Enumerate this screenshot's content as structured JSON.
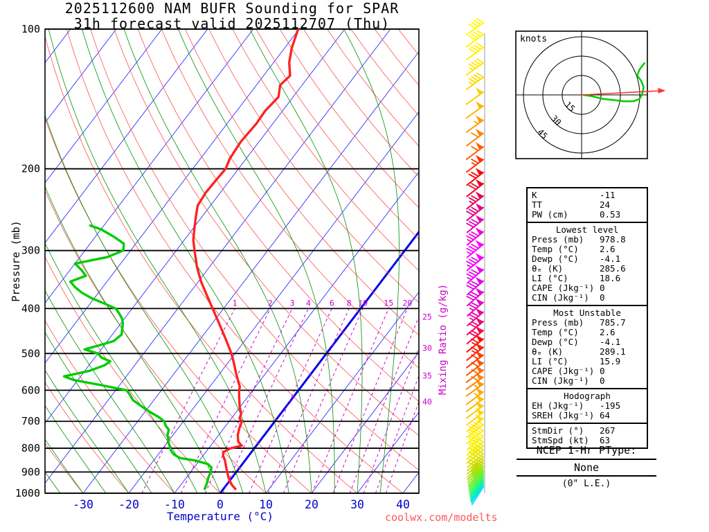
{
  "title": {
    "line1": "2025112600 NAM BUFR Sounding for SPAR",
    "line2": "31h forecast valid 2025112707 (Thu)"
  },
  "watermark": "coolwx.com/modelts",
  "axes": {
    "pressure_label": "Pressure (mb)",
    "temp_label": "Temperature (°C)",
    "mixing_label": "Mixing Ratio (g/kg)",
    "pressure_ticks": [
      100,
      200,
      300,
      400,
      500,
      600,
      700,
      800,
      900,
      1000
    ],
    "temp_ticks": [
      -30,
      -20,
      -10,
      0,
      10,
      20,
      30,
      40
    ]
  },
  "colors": {
    "isotherm": "#2e2eff",
    "zero_isotherm": "#0000ee",
    "dry_adiabat": "#ff5050",
    "moist_adiabat": "#009000",
    "mixing_ratio": "#cc00cc",
    "temperature": "#ff2222",
    "dewpoint": "#00cc00",
    "pressure_line": "#000000",
    "temp_axis_text": "#0000cc",
    "hodo_trace": "#00cc00",
    "storm_arrow": "#ff3333"
  },
  "hodograph": {
    "unit_label": "knots",
    "rings": [
      15,
      30,
      45
    ],
    "trace_uv_kt": [
      [
        1,
        0
      ],
      [
        8,
        -1
      ],
      [
        16,
        -3
      ],
      [
        25,
        -4
      ],
      [
        33,
        -5
      ],
      [
        40,
        -5
      ],
      [
        45,
        -3
      ],
      [
        47,
        1
      ],
      [
        48,
        6
      ],
      [
        46,
        11
      ],
      [
        43,
        15
      ],
      [
        45,
        20
      ],
      [
        49,
        25
      ]
    ],
    "storm_dir": 267,
    "storm_spd": 63
  },
  "indices": {
    "sections": [
      {
        "header": null,
        "rows": [
          [
            "K",
            "-11"
          ],
          [
            "TT",
            "24"
          ],
          [
            "PW (cm)",
            "0.53"
          ]
        ]
      },
      {
        "header": "Lowest level",
        "rows": [
          [
            "Press (mb)",
            "978.8"
          ],
          [
            "Temp (°C)",
            "2.6"
          ],
          [
            "Dewp (°C)",
            "-4.1"
          ],
          [
            "θₑ (K)",
            "285.6"
          ],
          [
            "LI (°C)",
            "18.6"
          ],
          [
            "CAPE (Jkg⁻¹)",
            "0"
          ],
          [
            "CIN (Jkg⁻¹)",
            "0"
          ]
        ]
      },
      {
        "header": "Most Unstable",
        "rows": [
          [
            "Press (mb)",
            "785.7"
          ],
          [
            "Temp (°C)",
            "2.6"
          ],
          [
            "Dewp (°C)",
            "-4.1"
          ],
          [
            "θₑ (K)",
            "289.1"
          ],
          [
            "LI (°C)",
            "15.9"
          ],
          [
            "CAPE (Jkg⁻¹)",
            "0"
          ],
          [
            "CIN (Jkg⁻¹)",
            "0"
          ]
        ]
      },
      {
        "header": "Hodograph",
        "rows": [
          [
            "EH (Jkg⁻¹)",
            "-195"
          ],
          [
            "SREH (Jkg⁻¹)",
            "64"
          ]
        ]
      },
      {
        "header": null,
        "rows": [
          [
            "StmDir (°)",
            "267"
          ],
          [
            "StmSpd (kt)",
            "63"
          ]
        ]
      }
    ]
  },
  "ptype": {
    "title": "NCEP 1-Hr PType:",
    "value": "None",
    "note": "(0\" L.E.)"
  },
  "chart_data": {
    "type": "skewt-log-p sounding",
    "pressure_axis": {
      "min": 100,
      "max": 1000,
      "scale": "log",
      "ticks": [
        100,
        200,
        300,
        400,
        500,
        600,
        700,
        800,
        900,
        1000
      ]
    },
    "temp_axis": {
      "ticks": [
        -30,
        -20,
        -10,
        0,
        10,
        20,
        30,
        40
      ],
      "unit": "°C"
    },
    "isotherms": {
      "start": -120,
      "end": 40,
      "step": 10,
      "highlight": 0
    },
    "dry_adiabats": {
      "start": -40,
      "end": 190,
      "step": 10
    },
    "moist_adiabats": {
      "start": -55,
      "end": 35,
      "step": 5
    },
    "mixing_ratios": [
      1,
      2,
      3,
      4,
      6,
      8,
      10,
      15,
      20,
      25,
      30,
      35,
      40
    ],
    "temperature_profile_p_c": [
      [
        978.8,
        2.6
      ],
      [
        960,
        1.2
      ],
      [
        950,
        0.6
      ],
      [
        925,
        -0.8
      ],
      [
        900,
        -2.0
      ],
      [
        875,
        -3.2
      ],
      [
        850,
        -4.4
      ],
      [
        830,
        -5.6
      ],
      [
        815,
        -6.2
      ],
      [
        800,
        -5.2
      ],
      [
        790,
        -3.2
      ],
      [
        775,
        -4.6
      ],
      [
        750,
        -5.8
      ],
      [
        725,
        -6.6
      ],
      [
        700,
        -7.2
      ],
      [
        690,
        -8.2
      ],
      [
        675,
        -8.6
      ],
      [
        650,
        -10.2
      ],
      [
        625,
        -11.6
      ],
      [
        600,
        -13.0
      ],
      [
        590,
        -13.4
      ],
      [
        575,
        -14.6
      ],
      [
        550,
        -16.6
      ],
      [
        525,
        -18.6
      ],
      [
        500,
        -20.8
      ],
      [
        475,
        -23.4
      ],
      [
        450,
        -26.2
      ],
      [
        425,
        -29.2
      ],
      [
        400,
        -32.4
      ],
      [
        375,
        -35.8
      ],
      [
        350,
        -39.4
      ],
      [
        325,
        -42.8
      ],
      [
        300,
        -46.0
      ],
      [
        285,
        -48.0
      ],
      [
        270,
        -49.6
      ],
      [
        255,
        -51.2
      ],
      [
        240,
        -52.8
      ],
      [
        225,
        -53.2
      ],
      [
        210,
        -53.0
      ],
      [
        200,
        -52.8
      ],
      [
        190,
        -53.6
      ],
      [
        175,
        -54.0
      ],
      [
        160,
        -53.6
      ],
      [
        150,
        -53.8
      ],
      [
        140,
        -53.2
      ],
      [
        132,
        -54.8
      ],
      [
        126,
        -54.2
      ],
      [
        118,
        -56.6
      ],
      [
        110,
        -58.4
      ],
      [
        100,
        -60.2
      ]
    ],
    "dewpoint_profile_p_c": [
      [
        978.8,
        -4.1
      ],
      [
        960,
        -4.4
      ],
      [
        950,
        -4.6
      ],
      [
        925,
        -5.2
      ],
      [
        900,
        -5.6
      ],
      [
        880,
        -6.2
      ],
      [
        865,
        -7.6
      ],
      [
        850,
        -11.0
      ],
      [
        840,
        -14.6
      ],
      [
        825,
        -16.6
      ],
      [
        810,
        -17.8
      ],
      [
        800,
        -18.4
      ],
      [
        780,
        -19.6
      ],
      [
        760,
        -20.6
      ],
      [
        750,
        -21.2
      ],
      [
        730,
        -21.8
      ],
      [
        715,
        -23.2
      ],
      [
        700,
        -24.2
      ],
      [
        685,
        -26.2
      ],
      [
        670,
        -28.6
      ],
      [
        650,
        -31.6
      ],
      [
        630,
        -34.6
      ],
      [
        615,
        -36.0
      ],
      [
        600,
        -37.6
      ],
      [
        585,
        -44.0
      ],
      [
        570,
        -51.0
      ],
      [
        560,
        -53.6
      ],
      [
        545,
        -49.0
      ],
      [
        530,
        -46.6
      ],
      [
        520,
        -46.0
      ],
      [
        510,
        -48.6
      ],
      [
        500,
        -50.0
      ],
      [
        490,
        -53.6
      ],
      [
        480,
        -51.0
      ],
      [
        470,
        -48.6
      ],
      [
        455,
        -48.0
      ],
      [
        445,
        -48.6
      ],
      [
        430,
        -49.6
      ],
      [
        420,
        -50.6
      ],
      [
        410,
        -52.0
      ],
      [
        400,
        -53.6
      ],
      [
        390,
        -57.0
      ],
      [
        380,
        -60.6
      ],
      [
        370,
        -63.6
      ],
      [
        360,
        -66.0
      ],
      [
        350,
        -68.0
      ],
      [
        340,
        -65.6
      ],
      [
        330,
        -67.6
      ],
      [
        320,
        -70.0
      ],
      [
        310,
        -64.0
      ],
      [
        300,
        -61.6
      ],
      [
        290,
        -62.6
      ],
      [
        280,
        -66.0
      ],
      [
        270,
        -70.0
      ],
      [
        265,
        -73.0
      ]
    ],
    "winds_fields": [
      "pressure_mb",
      "speed_kt",
      "direction_deg",
      "color"
    ],
    "winds": [
      [
        1000,
        10,
        252,
        "#00e0ff"
      ],
      [
        992,
        12,
        254,
        "#00e6e4"
      ],
      [
        984,
        15,
        255,
        "#00ecc8"
      ],
      [
        976,
        18,
        256,
        "#0cf0ae"
      ],
      [
        968,
        20,
        257,
        "#1cf394"
      ],
      [
        960,
        22,
        258,
        "#2cf57c"
      ],
      [
        952,
        25,
        259,
        "#3ef664"
      ],
      [
        944,
        27,
        260,
        "#50f550"
      ],
      [
        936,
        30,
        261,
        "#62f23e"
      ],
      [
        928,
        32,
        262,
        "#74ee2e"
      ],
      [
        920,
        34,
        263,
        "#86ea20"
      ],
      [
        910,
        35,
        264,
        "#98e614"
      ],
      [
        900,
        36,
        265,
        "#aae20a"
      ],
      [
        888,
        38,
        265,
        "#bade02"
      ],
      [
        876,
        40,
        266,
        "#c8da00"
      ],
      [
        862,
        41,
        266,
        "#d4dc00"
      ],
      [
        848,
        42,
        266,
        "#dee000"
      ],
      [
        832,
        44,
        267,
        "#e8e600"
      ],
      [
        815,
        45,
        267,
        "#f0ec00"
      ],
      [
        800,
        46,
        267,
        "#f6f000"
      ],
      [
        778,
        47,
        267,
        "#fbf200"
      ],
      [
        756,
        48,
        268,
        "#fff200"
      ],
      [
        734,
        49,
        268,
        "#ffea00"
      ],
      [
        712,
        50,
        268,
        "#ffe000"
      ],
      [
        690,
        51,
        268,
        "#ffd600"
      ],
      [
        668,
        52,
        269,
        "#ffc800"
      ],
      [
        646,
        54,
        269,
        "#ffba00"
      ],
      [
        624,
        55,
        269,
        "#ffaa00"
      ],
      [
        600,
        58,
        270,
        "#ff9800"
      ],
      [
        580,
        60,
        270,
        "#ff8200"
      ],
      [
        560,
        62,
        270,
        "#ff6c00"
      ],
      [
        540,
        63,
        269,
        "#ff5400"
      ],
      [
        520,
        64,
        269,
        "#ff3c00"
      ],
      [
        500,
        66,
        268,
        "#ff2200"
      ],
      [
        480,
        68,
        268,
        "#fe0a06"
      ],
      [
        460,
        70,
        267,
        "#f80040"
      ],
      [
        440,
        73,
        267,
        "#f20070"
      ],
      [
        420,
        76,
        266,
        "#ec00a0"
      ],
      [
        400,
        78,
        266,
        "#e800c0"
      ],
      [
        380,
        80,
        266,
        "#e400d6"
      ],
      [
        360,
        82,
        266,
        "#e200e6"
      ],
      [
        340,
        85,
        266,
        "#ea00f2"
      ],
      [
        320,
        87,
        267,
        "#f200fa"
      ],
      [
        300,
        88,
        267,
        "#fa00ff"
      ],
      [
        282,
        86,
        267,
        "#f000de"
      ],
      [
        265,
        83,
        267,
        "#e600b8"
      ],
      [
        250,
        80,
        268,
        "#e10088"
      ],
      [
        236,
        77,
        268,
        "#e40054"
      ],
      [
        222,
        73,
        268,
        "#ee0026"
      ],
      [
        210,
        70,
        268,
        "#f80000"
      ],
      [
        197,
        66,
        269,
        "#ff3200"
      ],
      [
        185,
        63,
        269,
        "#ff5e00"
      ],
      [
        173,
        60,
        269,
        "#ff8200"
      ],
      [
        162,
        57,
        270,
        "#ff9e00"
      ],
      [
        151,
        54,
        270,
        "#ffb600"
      ],
      [
        141,
        51,
        270,
        "#ffca00"
      ],
      [
        131,
        48,
        270,
        "#ffda00"
      ],
      [
        122,
        46,
        270,
        "#ffe800"
      ],
      [
        113,
        44,
        270,
        "#fff200"
      ],
      [
        106,
        42,
        270,
        "#fff800"
      ],
      [
        100,
        40,
        270,
        "#fffc00"
      ]
    ]
  }
}
